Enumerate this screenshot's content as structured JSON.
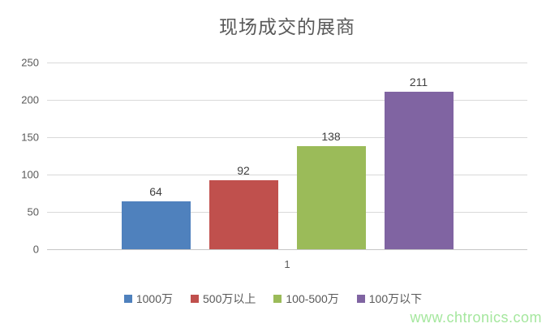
{
  "title": "现场成交的展商",
  "watermark": "www.chtronics.com",
  "x_axis": {
    "category_label": "1"
  },
  "colors": {
    "series_blue": "#4F81BD",
    "series_red": "#C0504D",
    "series_green": "#9BBB59",
    "series_purple": "#8064A2",
    "gridline": "#d9d9d9",
    "axis_line": "#c6c6c6",
    "text": "#595959",
    "data_label": "#404040",
    "watermark": "#a5e79e"
  },
  "chart_data": {
    "type": "bar",
    "title": "现场成交的展商",
    "categories": [
      "1"
    ],
    "series": [
      {
        "name": "1000万",
        "values": [
          64
        ],
        "color": "#4F81BD"
      },
      {
        "name": "500万以上",
        "values": [
          92
        ],
        "color": "#C0504D"
      },
      {
        "name": "100-500万",
        "values": [
          138
        ],
        "color": "#9BBB59"
      },
      {
        "name": "100万以下",
        "values": [
          211
        ],
        "color": "#8064A2"
      }
    ],
    "xlabel": "",
    "ylabel": "",
    "ylim": [
      0,
      250
    ],
    "yticks": [
      0,
      50,
      100,
      150,
      200,
      250
    ],
    "grid": true,
    "data_labels": true,
    "legend_position": "bottom"
  }
}
